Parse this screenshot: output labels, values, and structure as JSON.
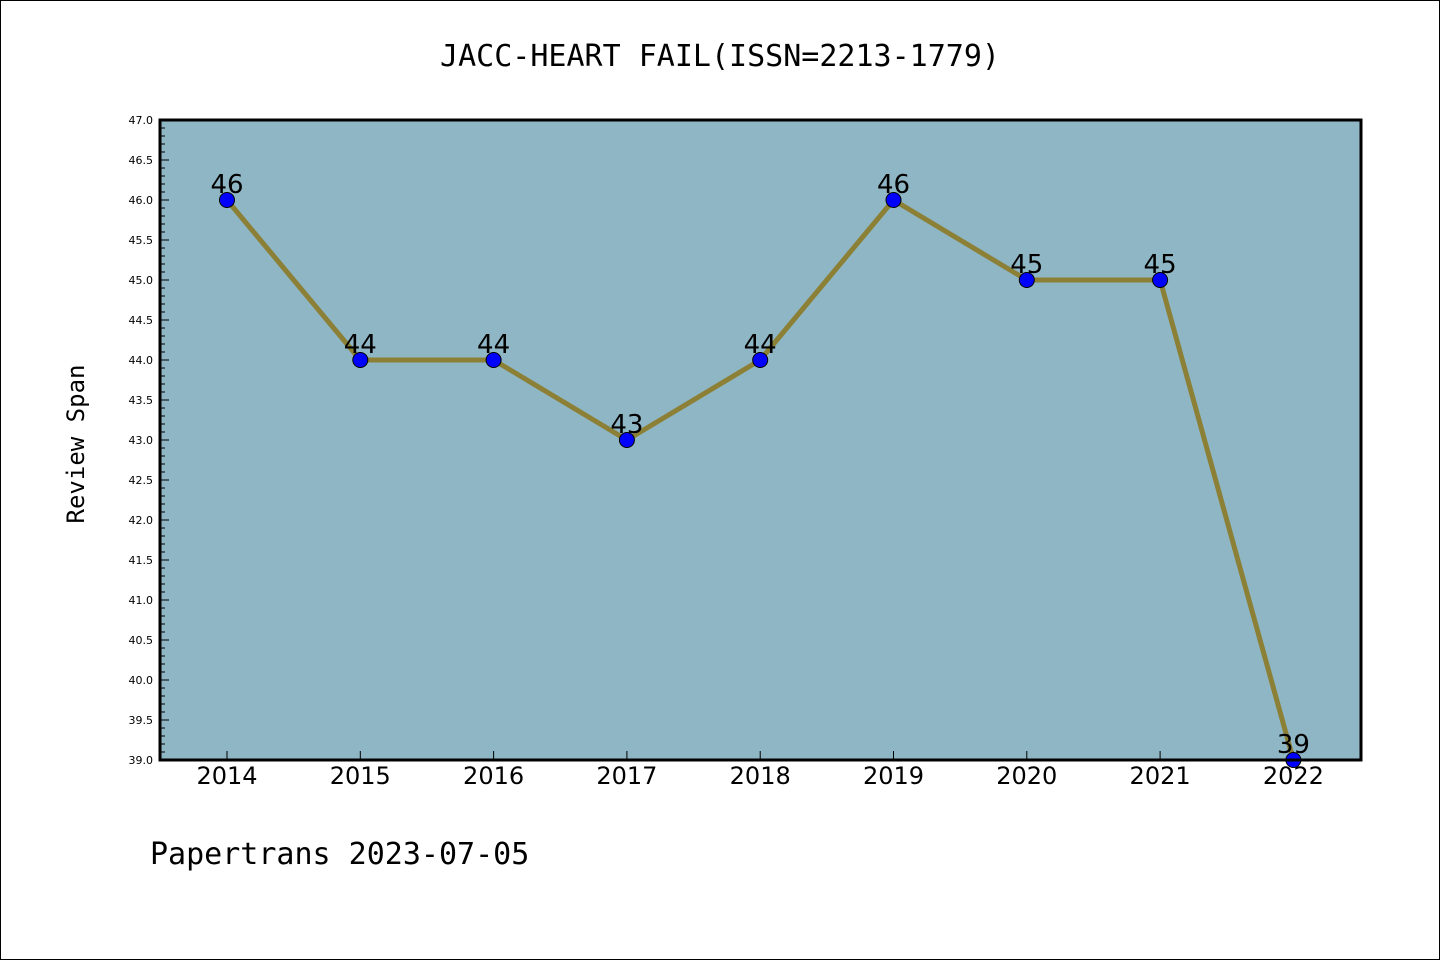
{
  "chart_data": {
    "type": "line",
    "title": "JACC-HEART FAIL(ISSN=2213-1779)",
    "xlabel": "",
    "ylabel": "Review Span",
    "categories": [
      "2014",
      "2015",
      "2016",
      "2017",
      "2018",
      "2019",
      "2020",
      "2021",
      "2022"
    ],
    "values": [
      46,
      44,
      44,
      43,
      44,
      46,
      45,
      45,
      39
    ],
    "data_labels": [
      "46",
      "44",
      "44",
      "43",
      "44",
      "46",
      "45",
      "45",
      "39"
    ],
    "ylim": [
      39.0,
      47.0
    ],
    "ytick_labels": [
      "39.0",
      "39.5",
      "40.0",
      "40.5",
      "41.0",
      "41.5",
      "42.0",
      "42.5",
      "43.0",
      "43.5",
      "44.0",
      "44.5",
      "45.0",
      "45.5",
      "46.0",
      "46.5",
      "47.0"
    ],
    "grid": false,
    "colors": {
      "plot_background": "#8fb6c4",
      "line": "#8b8035",
      "marker": "#0000ff"
    }
  },
  "footer": {
    "text": "Papertrans 2023-07-05"
  }
}
